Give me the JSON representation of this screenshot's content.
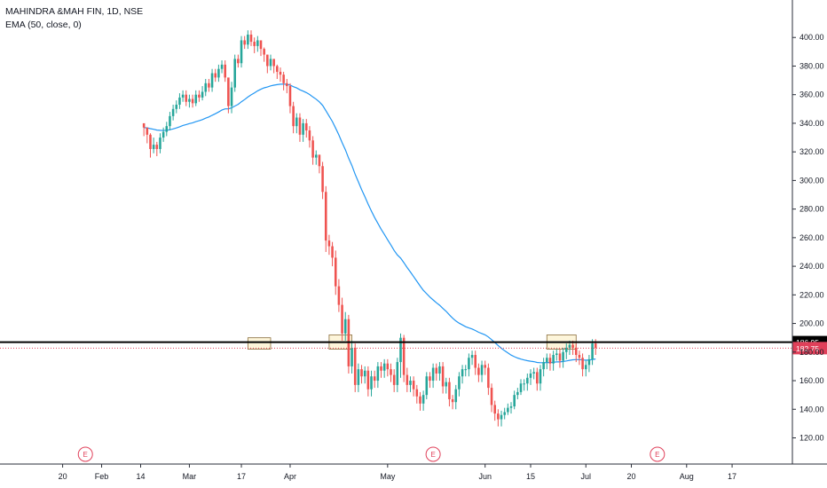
{
  "header": {
    "symbol_line": "MAHINDRA &MAH FIN, 1D, NSE",
    "indicator_line": "EMA (50, close, 0)"
  },
  "colors": {
    "up": "#26a69a",
    "down": "#ef5350",
    "ema": "#2196f3",
    "resistance": "#000000",
    "last_price": "#e0405a",
    "box_fill": "#fdf3d4",
    "box_stroke": "#8a6d3b"
  },
  "chart_data": {
    "type": "candlestick",
    "title": "MAHINDRA &MAH FIN, 1D, NSE",
    "x_tick_labels": [
      "20",
      "Feb",
      "14",
      "Mar",
      "17",
      "Apr",
      "May",
      "Jun",
      "15",
      "Jul",
      "20",
      "Aug",
      "17"
    ],
    "x_tick_positions_day": [
      20,
      32,
      44,
      59,
      75,
      90,
      120,
      150,
      164,
      181,
      195,
      212,
      226
    ],
    "y_ticks": [
      120,
      140,
      160,
      180,
      200,
      220,
      240,
      260,
      280,
      300,
      320,
      340,
      360,
      380,
      400
    ],
    "ylim": [
      111,
      420
    ],
    "xlim_days": [
      1,
      241
    ],
    "last_candle_day": 184,
    "price_labels": {
      "resistance": "186.95",
      "last": "182.75"
    },
    "resistance_level": 186.95,
    "last_price": 182.75,
    "earnings_marker_days": [
      27,
      134,
      203
    ],
    "earnings_label": "E",
    "highlight_boxes": [
      {
        "day_from": 77,
        "day_to": 84,
        "price_low": 182,
        "price_high": 190
      },
      {
        "day_from": 102,
        "day_to": 109,
        "price_low": 182,
        "price_high": 192
      },
      {
        "day_from": 169,
        "day_to": 178,
        "price_low": 182,
        "price_high": 192
      }
    ],
    "closes": [
      337,
      332,
      322,
      325,
      322,
      330,
      334,
      338,
      345,
      350,
      353,
      358,
      360,
      355,
      357,
      354,
      360,
      358,
      362,
      368,
      365,
      375,
      372,
      378,
      381,
      372,
      352,
      365,
      385,
      382,
      398,
      395,
      402,
      397,
      394,
      398,
      392,
      388,
      380,
      385,
      380,
      376,
      374,
      368,
      366,
      352,
      338,
      344,
      332,
      340,
      335,
      328,
      316,
      318,
      310,
      292,
      258,
      254,
      246,
      226,
      213,
      193,
      203,
      170,
      183,
      157,
      168,
      163,
      167,
      154,
      163,
      160,
      170,
      167,
      172,
      168,
      164,
      157,
      173,
      190,
      164,
      157,
      160,
      154,
      149,
      144,
      150,
      163,
      160,
      169,
      165,
      170,
      156,
      159,
      147,
      145,
      154,
      163,
      168,
      168,
      176,
      178,
      169,
      164,
      171,
      169,
      155,
      143,
      137,
      133,
      136,
      138,
      141,
      142,
      150,
      152,
      158,
      158,
      162,
      165,
      166,
      158,
      168,
      173,
      176,
      172,
      178,
      179,
      174,
      180,
      183,
      185,
      183,
      178,
      176,
      168,
      171,
      175,
      186,
      183
    ],
    "highs": [
      340,
      337,
      333,
      330,
      327,
      333,
      337,
      341,
      348,
      353,
      356,
      361,
      363,
      363,
      360,
      360,
      363,
      363,
      366,
      371,
      371,
      378,
      378,
      381,
      384,
      384,
      370,
      369,
      388,
      388,
      401,
      401,
      405,
      405,
      400,
      401,
      398,
      393,
      388,
      388,
      385,
      381,
      379,
      376,
      371,
      368,
      355,
      347,
      347,
      343,
      343,
      338,
      331,
      321,
      318,
      313,
      296,
      262,
      257,
      251,
      231,
      218,
      208,
      206,
      188,
      186,
      172,
      171,
      170,
      170,
      167,
      167,
      173,
      173,
      175,
      175,
      172,
      168,
      176,
      193,
      192,
      169,
      163,
      163,
      157,
      152,
      153,
      166,
      166,
      172,
      172,
      173,
      173,
      162,
      162,
      150,
      157,
      166,
      171,
      171,
      179,
      181,
      181,
      172,
      174,
      174,
      172,
      158,
      146,
      140,
      139,
      141,
      144,
      145,
      153,
      155,
      161,
      161,
      165,
      168,
      169,
      169,
      171,
      176,
      179,
      179,
      181,
      182,
      182,
      183,
      186,
      188,
      188,
      186,
      181,
      179,
      174,
      178,
      189,
      189
    ],
    "lows": [
      331,
      326,
      316,
      319,
      317,
      319,
      327,
      331,
      335,
      342,
      347,
      350,
      355,
      352,
      351,
      351,
      352,
      355,
      356,
      359,
      362,
      362,
      369,
      369,
      375,
      369,
      347,
      347,
      362,
      379,
      379,
      392,
      392,
      394,
      389,
      390,
      387,
      383,
      375,
      377,
      375,
      371,
      369,
      363,
      361,
      347,
      333,
      333,
      327,
      327,
      330,
      323,
      311,
      311,
      305,
      287,
      250,
      248,
      240,
      220,
      208,
      188,
      188,
      165,
      165,
      152,
      152,
      158,
      158,
      149,
      149,
      155,
      155,
      162,
      162,
      163,
      159,
      152,
      152,
      162,
      159,
      152,
      152,
      149,
      144,
      139,
      139,
      147,
      155,
      155,
      160,
      160,
      151,
      151,
      142,
      140,
      140,
      149,
      158,
      163,
      163,
      171,
      164,
      159,
      159,
      164,
      150,
      138,
      132,
      128,
      128,
      133,
      136,
      137,
      140,
      147,
      150,
      153,
      153,
      157,
      161,
      153,
      153,
      163,
      168,
      167,
      167,
      174,
      169,
      169,
      175,
      178,
      178,
      173,
      171,
      163,
      163,
      166,
      171,
      178
    ]
  }
}
